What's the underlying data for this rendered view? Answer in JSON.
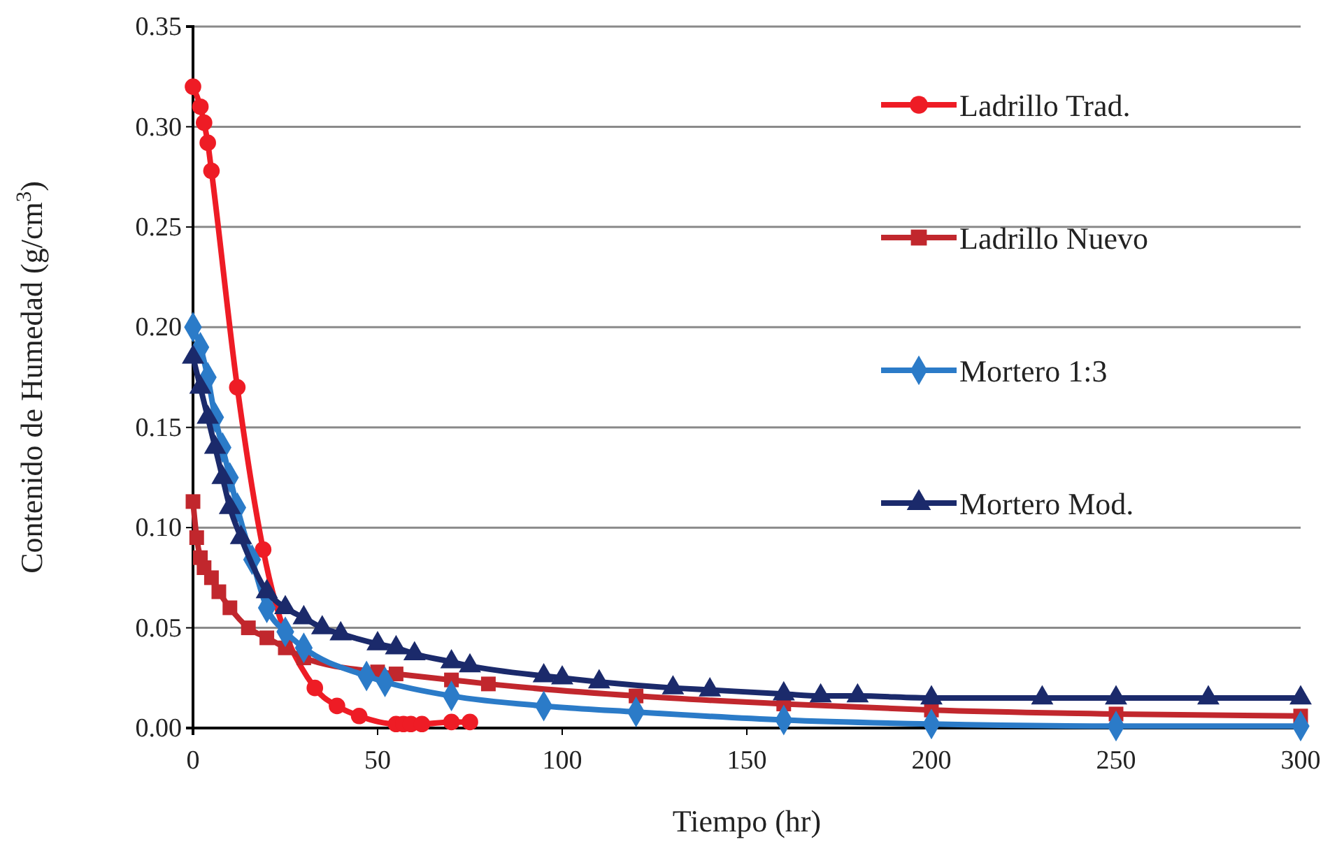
{
  "chart_data": {
    "type": "line",
    "xlabel": "Tiempo (hr)",
    "ylabel": "Contenido de Humedad (g/cm$^{3}$)",
    "xlim": [
      0,
      300
    ],
    "xticks": [
      0,
      50,
      100,
      150,
      200,
      250,
      300
    ],
    "ylim": [
      0,
      0.35
    ],
    "yticks": [
      {
        "value": 0,
        "label": "0.00"
      },
      {
        "value": 0.05,
        "label": "0.05"
      },
      {
        "value": 0.1,
        "label": "0.10"
      },
      {
        "value": 0.15,
        "label": "0.15"
      },
      {
        "value": 0.2,
        "label": "0.20"
      },
      {
        "value": 0.25,
        "label": "0.25"
      },
      {
        "value": 0.3,
        "label": "0.30"
      },
      {
        "value": 0.35,
        "label": "0.35"
      }
    ],
    "grid": "y",
    "legend": "right",
    "line_style": "solid",
    "series": [
      {
        "name": "Ladrillo Trad.",
        "color": "#ee1c25",
        "marker": "circle",
        "x": [
          0,
          2,
          3,
          4,
          5,
          12,
          19,
          33,
          39,
          45,
          55,
          57,
          59,
          62,
          70,
          75
        ],
        "values": [
          0.32,
          0.31,
          0.302,
          0.292,
          0.278,
          0.17,
          0.089,
          0.02,
          0.011,
          0.006,
          0.002,
          0.002,
          0.002,
          0.002,
          0.003,
          0.003
        ]
      },
      {
        "name": "Ladrillo Nuevo",
        "color": "#c1272d",
        "marker": "square",
        "x": [
          0,
          1,
          2,
          3,
          5,
          7,
          10,
          15,
          20,
          25,
          30,
          50,
          55,
          70,
          80,
          120,
          160,
          200,
          250,
          300
        ],
        "values": [
          0.113,
          0.095,
          0.085,
          0.08,
          0.075,
          0.068,
          0.06,
          0.05,
          0.045,
          0.04,
          0.035,
          0.028,
          0.027,
          0.024,
          0.022,
          0.016,
          0.012,
          0.009,
          0.007,
          0.006
        ]
      },
      {
        "name": "Mortero 1:3",
        "color": "#2b7bc8",
        "marker": "diamond",
        "x": [
          0,
          2,
          4,
          6,
          8,
          10,
          12,
          16,
          20,
          25,
          30,
          47,
          52,
          70,
          95,
          120,
          160,
          200,
          250,
          300
        ],
        "values": [
          0.2,
          0.19,
          0.175,
          0.155,
          0.14,
          0.125,
          0.11,
          0.084,
          0.06,
          0.048,
          0.04,
          0.026,
          0.023,
          0.016,
          0.011,
          0.008,
          0.004,
          0.002,
          0.001,
          0.001
        ]
      },
      {
        "name": "Mortero Mod.",
        "color": "#1b2a6b",
        "marker": "triangle",
        "x": [
          0,
          2,
          4,
          6,
          8,
          10,
          13,
          20,
          25,
          30,
          35,
          40,
          50,
          55,
          60,
          70,
          75,
          95,
          100,
          110,
          130,
          140,
          160,
          170,
          180,
          200,
          230,
          250,
          275,
          300
        ],
        "values": [
          0.185,
          0.17,
          0.155,
          0.14,
          0.125,
          0.11,
          0.095,
          0.068,
          0.06,
          0.055,
          0.05,
          0.047,
          0.042,
          0.04,
          0.037,
          0.033,
          0.031,
          0.026,
          0.025,
          0.023,
          0.02,
          0.019,
          0.017,
          0.016,
          0.016,
          0.015,
          0.015,
          0.015,
          0.015,
          0.015
        ]
      }
    ]
  }
}
